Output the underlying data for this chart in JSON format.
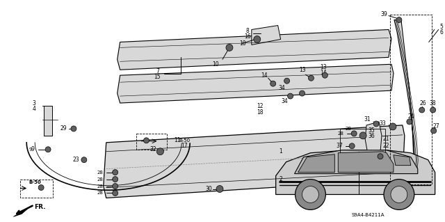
{
  "background_color": "#ffffff",
  "fig_width": 6.4,
  "fig_height": 3.19,
  "dpi": 100,
  "bottom_code": "S9A4-B4211A",
  "fr_label": "FR.",
  "b50_label": "B-50",
  "gray_light": "#d8d8d8",
  "gray_mid": "#b0b0b0",
  "gray_dark": "#606060",
  "black": "#000000"
}
